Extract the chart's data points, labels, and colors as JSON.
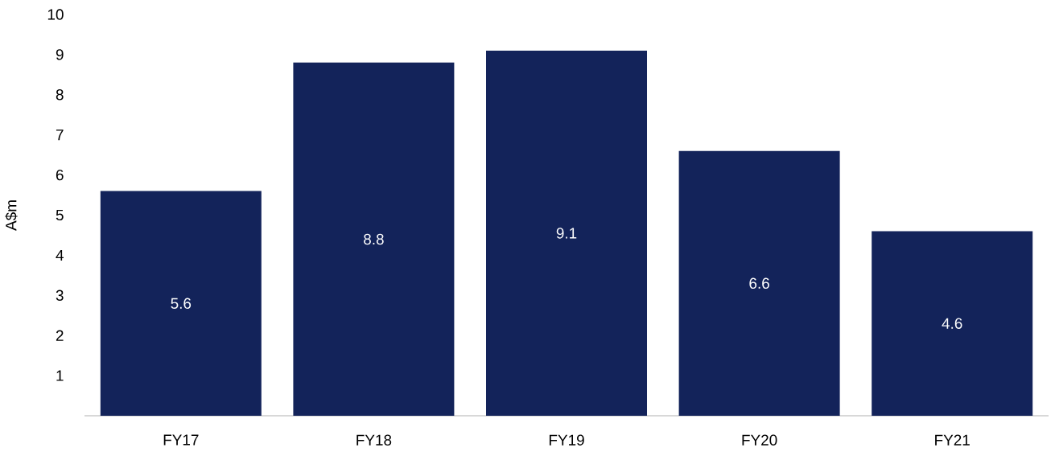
{
  "chart_data": {
    "type": "bar",
    "ylabel": "A$m",
    "categories": [
      "FY17",
      "FY18",
      "FY19",
      "FY20",
      "FY21"
    ],
    "values": [
      5.6,
      8.8,
      9.1,
      6.6,
      4.6
    ],
    "color": "#13235a",
    "data_labels": true,
    "ylim": [
      0,
      10
    ],
    "yticks": [
      1,
      2,
      3,
      4,
      5,
      6,
      7,
      8,
      9,
      10
    ]
  }
}
